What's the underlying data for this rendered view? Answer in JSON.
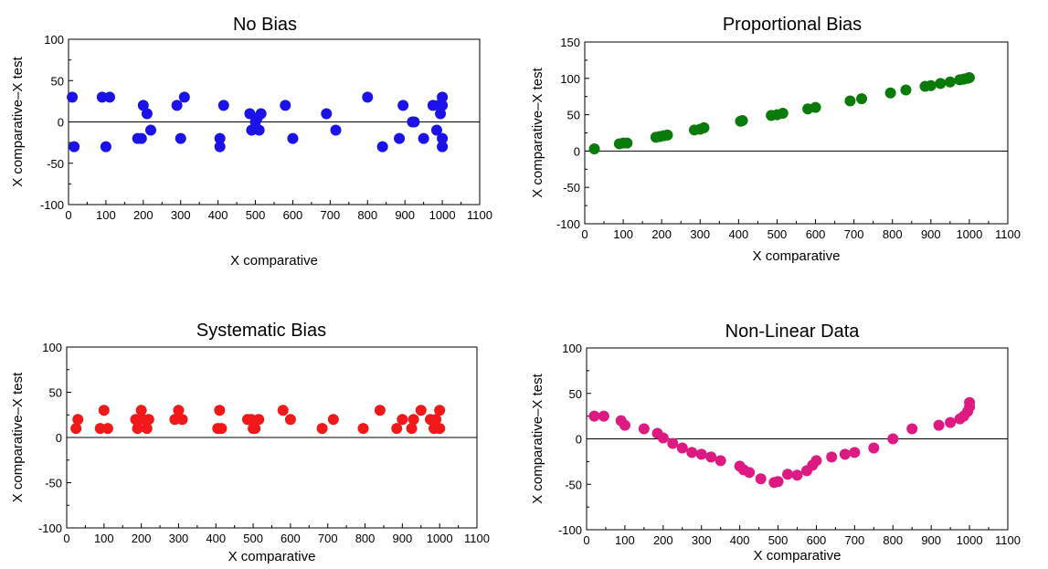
{
  "chart_data": [
    {
      "type": "scatter",
      "title": "No Bias",
      "xlabel": "X comparative",
      "ylabel": "X comparative–X test",
      "xlim": [
        0,
        1100
      ],
      "ylim": [
        -100,
        100
      ],
      "x_tick_labels": [
        "0",
        "100",
        "200",
        "300",
        "400",
        "500",
        "600",
        "700",
        "800",
        "900",
        "1000",
        "1100"
      ],
      "y_tick_labels": [
        "-100",
        "-50",
        "0",
        "50",
        "100"
      ],
      "color": "#1a12e6",
      "reference_line_y": 0,
      "points": [
        [
          10,
          30
        ],
        [
          15,
          -30
        ],
        [
          90,
          30
        ],
        [
          100,
          -30
        ],
        [
          110,
          30
        ],
        [
          185,
          -20
        ],
        [
          195,
          -20
        ],
        [
          200,
          20
        ],
        [
          210,
          10
        ],
        [
          220,
          -10
        ],
        [
          290,
          20
        ],
        [
          300,
          -20
        ],
        [
          310,
          30
        ],
        [
          405,
          -20
        ],
        [
          405,
          -30
        ],
        [
          415,
          20
        ],
        [
          485,
          10
        ],
        [
          490,
          -10
        ],
        [
          500,
          0
        ],
        [
          505,
          5
        ],
        [
          510,
          -10
        ],
        [
          515,
          10
        ],
        [
          580,
          20
        ],
        [
          600,
          -20
        ],
        [
          690,
          10
        ],
        [
          715,
          -10
        ],
        [
          800,
          30
        ],
        [
          840,
          -30
        ],
        [
          885,
          -20
        ],
        [
          895,
          20
        ],
        [
          920,
          0
        ],
        [
          925,
          0
        ],
        [
          950,
          -20
        ],
        [
          975,
          20
        ],
        [
          985,
          -10
        ],
        [
          990,
          20
        ],
        [
          995,
          10
        ],
        [
          1000,
          30
        ],
        [
          1000,
          20
        ],
        [
          1000,
          -20
        ],
        [
          1000,
          -30
        ]
      ]
    },
    {
      "type": "scatter",
      "title": "Proportional Bias",
      "xlabel": "X comparative",
      "ylabel": "X comparative–X test",
      "xlim": [
        0,
        1100
      ],
      "ylim": [
        -100,
        150
      ],
      "x_tick_labels": [
        "0",
        "100",
        "200",
        "300",
        "400",
        "500",
        "600",
        "700",
        "800",
        "900",
        "1000",
        "1100"
      ],
      "y_tick_labels": [
        "-100",
        "-50",
        "0",
        "50",
        "100",
        "150"
      ],
      "color": "#0a7a0a",
      "reference_line_y": 0,
      "points": [
        [
          25,
          3
        ],
        [
          90,
          10
        ],
        [
          100,
          11
        ],
        [
          110,
          11
        ],
        [
          185,
          19
        ],
        [
          195,
          20
        ],
        [
          205,
          21
        ],
        [
          215,
          22
        ],
        [
          285,
          29
        ],
        [
          300,
          30
        ],
        [
          310,
          32
        ],
        [
          405,
          41
        ],
        [
          410,
          42
        ],
        [
          485,
          49
        ],
        [
          500,
          50
        ],
        [
          515,
          52
        ],
        [
          580,
          58
        ],
        [
          600,
          60
        ],
        [
          690,
          69
        ],
        [
          720,
          72
        ],
        [
          795,
          80
        ],
        [
          835,
          84
        ],
        [
          885,
          89
        ],
        [
          900,
          90
        ],
        [
          925,
          93
        ],
        [
          950,
          95
        ],
        [
          975,
          98
        ],
        [
          985,
          99
        ],
        [
          995,
          100
        ],
        [
          1000,
          101
        ]
      ]
    },
    {
      "type": "scatter",
      "title": "Systematic Bias",
      "xlabel": "X comparative",
      "ylabel": "X comparative–X test",
      "xlim": [
        0,
        1100
      ],
      "ylim": [
        -100,
        100
      ],
      "x_tick_labels": [
        "0",
        "100",
        "200",
        "300",
        "400",
        "500",
        "600",
        "700",
        "800",
        "900",
        "1000",
        "1100"
      ],
      "y_tick_labels": [
        "-100",
        "-50",
        "0",
        "50",
        "100"
      ],
      "color": "#f01818",
      "reference_line_y": 0,
      "points": [
        [
          25,
          10
        ],
        [
          30,
          20
        ],
        [
          90,
          10
        ],
        [
          100,
          30
        ],
        [
          110,
          10
        ],
        [
          185,
          20
        ],
        [
          190,
          10
        ],
        [
          200,
          30
        ],
        [
          205,
          20
        ],
        [
          215,
          10
        ],
        [
          220,
          20
        ],
        [
          290,
          20
        ],
        [
          300,
          30
        ],
        [
          310,
          20
        ],
        [
          405,
          10
        ],
        [
          410,
          30
        ],
        [
          415,
          10
        ],
        [
          485,
          20
        ],
        [
          495,
          20
        ],
        [
          500,
          10
        ],
        [
          505,
          10
        ],
        [
          515,
          20
        ],
        [
          580,
          30
        ],
        [
          600,
          20
        ],
        [
          685,
          10
        ],
        [
          715,
          20
        ],
        [
          795,
          10
        ],
        [
          840,
          30
        ],
        [
          885,
          10
        ],
        [
          900,
          20
        ],
        [
          925,
          10
        ],
        [
          930,
          20
        ],
        [
          950,
          30
        ],
        [
          975,
          20
        ],
        [
          985,
          10
        ],
        [
          990,
          20
        ],
        [
          1000,
          30
        ],
        [
          1000,
          10
        ]
      ]
    },
    {
      "type": "scatter",
      "title": "Non-Linear Data",
      "xlabel": "X comparative",
      "ylabel": "X comparative–X test",
      "xlim": [
        0,
        1100
      ],
      "ylim": [
        -100,
        100
      ],
      "x_tick_labels": [
        "0",
        "100",
        "200",
        "300",
        "400",
        "500",
        "600",
        "700",
        "800",
        "900",
        "1000",
        "1100"
      ],
      "y_tick_labels": [
        "-100",
        "-50",
        "0",
        "50",
        "100"
      ],
      "color": "#dd1a82",
      "reference_line_y": 0,
      "points": [
        [
          20,
          25
        ],
        [
          45,
          25
        ],
        [
          90,
          20
        ],
        [
          100,
          15
        ],
        [
          150,
          11
        ],
        [
          185,
          6
        ],
        [
          200,
          1
        ],
        [
          225,
          -5
        ],
        [
          250,
          -10
        ],
        [
          275,
          -15
        ],
        [
          300,
          -17
        ],
        [
          325,
          -20
        ],
        [
          350,
          -24
        ],
        [
          400,
          -30
        ],
        [
          410,
          -34
        ],
        [
          425,
          -37
        ],
        [
          455,
          -44
        ],
        [
          490,
          -48
        ],
        [
          500,
          -47
        ],
        [
          525,
          -39
        ],
        [
          550,
          -40
        ],
        [
          575,
          -35
        ],
        [
          590,
          -29
        ],
        [
          600,
          -24
        ],
        [
          640,
          -20
        ],
        [
          675,
          -17
        ],
        [
          700,
          -15
        ],
        [
          750,
          -10
        ],
        [
          800,
          0
        ],
        [
          850,
          11
        ],
        [
          920,
          15
        ],
        [
          950,
          18
        ],
        [
          975,
          22
        ],
        [
          985,
          25
        ],
        [
          995,
          30
        ],
        [
          1000,
          35
        ],
        [
          1000,
          40
        ]
      ]
    }
  ]
}
